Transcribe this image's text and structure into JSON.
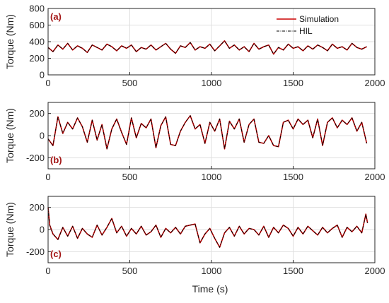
{
  "figure": {
    "xlabel": "Time (s)"
  },
  "chart_data": [
    {
      "type": "line",
      "panel_label": "(a)",
      "title": "",
      "xlabel": "",
      "ylabel": "Torque (Nm)",
      "xlim": [
        0,
        2000
      ],
      "ylim": [
        0,
        800
      ],
      "x_ticks": [
        0,
        500,
        1000,
        1500,
        2000
      ],
      "y_ticks": [
        0,
        200,
        400,
        600,
        800
      ],
      "grid": true,
      "legend": {
        "position": "top-right",
        "entries": [
          "Simulation",
          "HIL"
        ]
      },
      "series": [
        {
          "name": "Simulation",
          "color": "#cc0000",
          "style": "solid",
          "x": [
            0,
            30,
            60,
            90,
            120,
            150,
            180,
            210,
            240,
            270,
            300,
            330,
            360,
            390,
            420,
            450,
            480,
            510,
            540,
            570,
            600,
            630,
            660,
            690,
            720,
            750,
            780,
            810,
            840,
            870,
            900,
            930,
            960,
            990,
            1020,
            1050,
            1080,
            1110,
            1140,
            1170,
            1200,
            1230,
            1260,
            1290,
            1320,
            1350,
            1380,
            1410,
            1440,
            1470,
            1500,
            1530,
            1560,
            1590,
            1620,
            1650,
            1680,
            1710,
            1740,
            1770,
            1800,
            1830,
            1860,
            1890,
            1920,
            1950
          ],
          "values": [
            330,
            280,
            360,
            310,
            380,
            300,
            350,
            320,
            270,
            360,
            330,
            300,
            370,
            340,
            290,
            350,
            320,
            360,
            280,
            330,
            310,
            360,
            300,
            340,
            380,
            310,
            260,
            350,
            330,
            390,
            300,
            340,
            320,
            370,
            290,
            350,
            410,
            320,
            360,
            300,
            340,
            280,
            380,
            310,
            340,
            360,
            250,
            330,
            300,
            370,
            320,
            340,
            290,
            350,
            310,
            360,
            330,
            290,
            370,
            320,
            340,
            300,
            380,
            330,
            310,
            340
          ]
        },
        {
          "name": "HIL",
          "color": "#000000",
          "style": "dash-dot",
          "x": [
            0,
            30,
            60,
            90,
            120,
            150,
            180,
            210,
            240,
            270,
            300,
            330,
            360,
            390,
            420,
            450,
            480,
            510,
            540,
            570,
            600,
            630,
            660,
            690,
            720,
            750,
            780,
            810,
            840,
            870,
            900,
            930,
            960,
            990,
            1020,
            1050,
            1080,
            1110,
            1140,
            1170,
            1200,
            1230,
            1260,
            1290,
            1320,
            1350,
            1380,
            1410,
            1440,
            1470,
            1500,
            1530,
            1560,
            1590,
            1620,
            1650,
            1680,
            1710,
            1740,
            1770,
            1800,
            1830,
            1860,
            1890,
            1920,
            1950
          ],
          "values": [
            330,
            280,
            360,
            310,
            380,
            300,
            350,
            320,
            270,
            360,
            330,
            300,
            370,
            340,
            290,
            350,
            320,
            360,
            280,
            330,
            310,
            360,
            300,
            340,
            380,
            310,
            260,
            350,
            330,
            390,
            300,
            340,
            320,
            370,
            290,
            350,
            410,
            320,
            360,
            300,
            340,
            280,
            380,
            310,
            340,
            360,
            250,
            330,
            300,
            370,
            320,
            340,
            290,
            350,
            310,
            360,
            330,
            290,
            370,
            320,
            340,
            300,
            380,
            330,
            310,
            340
          ]
        }
      ]
    },
    {
      "type": "line",
      "panel_label": "(b)",
      "title": "",
      "xlabel": "",
      "ylabel": "Torque (Nm)",
      "xlim": [
        0,
        2000
      ],
      "ylim": [
        -300,
        300
      ],
      "x_ticks": [
        0,
        500,
        1000,
        1500,
        2000
      ],
      "y_ticks": [
        -200,
        0,
        200
      ],
      "grid": true,
      "series": [
        {
          "name": "Simulation",
          "color": "#cc0000",
          "style": "solid",
          "x": [
            0,
            30,
            60,
            90,
            120,
            150,
            180,
            210,
            240,
            270,
            300,
            330,
            360,
            390,
            420,
            450,
            480,
            510,
            540,
            570,
            600,
            630,
            660,
            690,
            720,
            750,
            780,
            810,
            840,
            870,
            900,
            930,
            960,
            990,
            1020,
            1050,
            1080,
            1110,
            1140,
            1170,
            1200,
            1230,
            1260,
            1290,
            1320,
            1350,
            1380,
            1410,
            1440,
            1470,
            1500,
            1530,
            1560,
            1590,
            1620,
            1650,
            1680,
            1710,
            1740,
            1770,
            1800,
            1830,
            1860,
            1890,
            1920,
            1950
          ],
          "values": [
            -30,
            -90,
            170,
            20,
            120,
            60,
            160,
            80,
            -60,
            140,
            -40,
            100,
            -120,
            60,
            150,
            30,
            -80,
            160,
            -20,
            110,
            70,
            150,
            -110,
            90,
            170,
            -80,
            -90,
            40,
            120,
            180,
            60,
            100,
            -70,
            120,
            40,
            150,
            -120,
            130,
            60,
            150,
            -60,
            100,
            150,
            -60,
            -70,
            0,
            -90,
            -100,
            120,
            140,
            60,
            150,
            100,
            140,
            -20,
            150,
            -90,
            120,
            160,
            70,
            140,
            100,
            160,
            40,
            120,
            -70
          ]
        },
        {
          "name": "HIL",
          "color": "#000000",
          "style": "dash-dot",
          "x": [
            0,
            30,
            60,
            90,
            120,
            150,
            180,
            210,
            240,
            270,
            300,
            330,
            360,
            390,
            420,
            450,
            480,
            510,
            540,
            570,
            600,
            630,
            660,
            690,
            720,
            750,
            780,
            810,
            840,
            870,
            900,
            930,
            960,
            990,
            1020,
            1050,
            1080,
            1110,
            1140,
            1170,
            1200,
            1230,
            1260,
            1290,
            1320,
            1350,
            1380,
            1410,
            1440,
            1470,
            1500,
            1530,
            1560,
            1590,
            1620,
            1650,
            1680,
            1710,
            1740,
            1770,
            1800,
            1830,
            1860,
            1890,
            1920,
            1950
          ],
          "values": [
            -30,
            -90,
            170,
            20,
            120,
            60,
            160,
            80,
            -60,
            140,
            -40,
            100,
            -120,
            60,
            150,
            30,
            -80,
            160,
            -20,
            110,
            70,
            150,
            -110,
            90,
            170,
            -80,
            -90,
            40,
            120,
            180,
            60,
            100,
            -70,
            120,
            40,
            150,
            -120,
            130,
            60,
            150,
            -60,
            100,
            150,
            -60,
            -70,
            0,
            -90,
            -100,
            120,
            140,
            60,
            150,
            100,
            140,
            -20,
            150,
            -90,
            120,
            160,
            70,
            140,
            100,
            160,
            40,
            120,
            -70
          ]
        }
      ]
    },
    {
      "type": "line",
      "panel_label": "(c)",
      "title": "",
      "xlabel": "Time (s)",
      "ylabel": "Torque (Nm)",
      "xlim": [
        0,
        2000
      ],
      "ylim": [
        -300,
        300
      ],
      "x_ticks": [
        0,
        500,
        1000,
        1500,
        2000
      ],
      "y_ticks": [
        -200,
        0,
        200
      ],
      "grid": true,
      "series": [
        {
          "name": "Simulation",
          "color": "#cc0000",
          "style": "solid",
          "x": [
            0,
            10,
            30,
            60,
            90,
            120,
            150,
            180,
            210,
            240,
            270,
            300,
            330,
            360,
            390,
            420,
            450,
            480,
            510,
            540,
            570,
            600,
            630,
            660,
            690,
            720,
            750,
            780,
            810,
            840,
            870,
            900,
            930,
            960,
            990,
            1020,
            1050,
            1080,
            1110,
            1140,
            1170,
            1200,
            1230,
            1260,
            1290,
            1320,
            1350,
            1380,
            1410,
            1440,
            1470,
            1500,
            1530,
            1560,
            1590,
            1620,
            1650,
            1680,
            1710,
            1740,
            1770,
            1800,
            1830,
            1860,
            1890,
            1920,
            1945,
            1955
          ],
          "values": [
            200,
            40,
            -40,
            -90,
            20,
            -60,
            30,
            -80,
            10,
            -40,
            -70,
            40,
            -50,
            20,
            100,
            -30,
            30,
            -60,
            10,
            -40,
            30,
            -50,
            -20,
            40,
            -70,
            10,
            -30,
            20,
            -40,
            30,
            40,
            50,
            -120,
            -40,
            10,
            -80,
            -160,
            -30,
            20,
            -60,
            30,
            -40,
            10,
            0,
            -50,
            30,
            -70,
            20,
            -30,
            40,
            10,
            -60,
            20,
            -40,
            30,
            -10,
            -50,
            20,
            -30,
            10,
            40,
            -70,
            20,
            -20,
            30,
            -30,
            140,
            60
          ]
        },
        {
          "name": "HIL",
          "color": "#000000",
          "style": "dash-dot",
          "x": [
            0,
            10,
            30,
            60,
            90,
            120,
            150,
            180,
            210,
            240,
            270,
            300,
            330,
            360,
            390,
            420,
            450,
            480,
            510,
            540,
            570,
            600,
            630,
            660,
            690,
            720,
            750,
            780,
            810,
            840,
            870,
            900,
            930,
            960,
            990,
            1020,
            1050,
            1080,
            1110,
            1140,
            1170,
            1200,
            1230,
            1260,
            1290,
            1320,
            1350,
            1380,
            1410,
            1440,
            1470,
            1500,
            1530,
            1560,
            1590,
            1620,
            1650,
            1680,
            1710,
            1740,
            1770,
            1800,
            1830,
            1860,
            1890,
            1920,
            1945,
            1955
          ],
          "values": [
            200,
            40,
            -40,
            -90,
            20,
            -60,
            30,
            -80,
            10,
            -40,
            -70,
            40,
            -50,
            20,
            100,
            -30,
            30,
            -60,
            10,
            -40,
            30,
            -50,
            -20,
            40,
            -70,
            10,
            -30,
            20,
            -40,
            30,
            40,
            50,
            -120,
            -40,
            10,
            -80,
            -160,
            -30,
            20,
            -60,
            30,
            -40,
            10,
            0,
            -50,
            30,
            -70,
            20,
            -30,
            40,
            10,
            -60,
            20,
            -40,
            30,
            -10,
            -50,
            20,
            -30,
            10,
            40,
            -70,
            20,
            -20,
            30,
            -30,
            140,
            60
          ]
        }
      ]
    }
  ]
}
